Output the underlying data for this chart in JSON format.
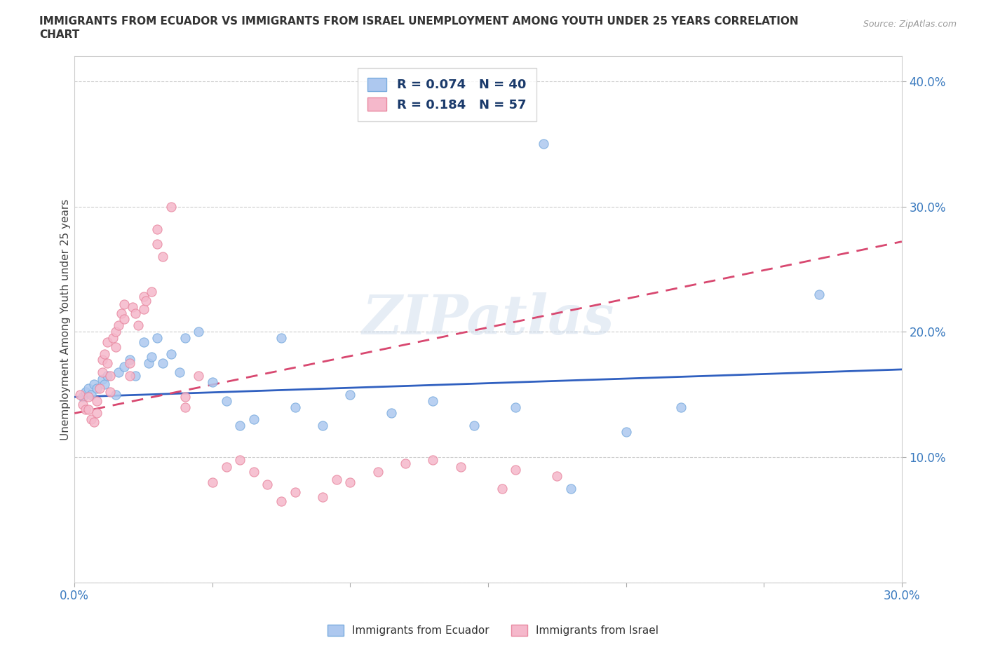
{
  "title_line1": "IMMIGRANTS FROM ECUADOR VS IMMIGRANTS FROM ISRAEL UNEMPLOYMENT AMONG YOUTH UNDER 25 YEARS CORRELATION",
  "title_line2": "CHART",
  "source_text": "Source: ZipAtlas.com",
  "ylabel": "Unemployment Among Youth under 25 years",
  "watermark": "ZIPatlas",
  "xlim": [
    0.0,
    0.3
  ],
  "ylim": [
    0.0,
    0.42
  ],
  "xticks": [
    0.0,
    0.05,
    0.1,
    0.15,
    0.2,
    0.25,
    0.3
  ],
  "yticks": [
    0.0,
    0.1,
    0.2,
    0.3,
    0.4
  ],
  "ecuador_color": "#adc8ef",
  "ecuador_edge": "#7aacde",
  "israel_color": "#f5b8cb",
  "israel_edge": "#e888a0",
  "ecuador_R": 0.074,
  "ecuador_N": 40,
  "israel_R": 0.184,
  "israel_N": 57,
  "ecuador_line_color": "#3060c0",
  "israel_line_color": "#d84870",
  "tick_label_color": "#3a7abf",
  "legend_color": "#1a3a6b",
  "ecuador_scatter_x": [
    0.003,
    0.004,
    0.005,
    0.006,
    0.007,
    0.008,
    0.01,
    0.011,
    0.012,
    0.015,
    0.016,
    0.018,
    0.02,
    0.022,
    0.025,
    0.027,
    0.028,
    0.03,
    0.032,
    0.035,
    0.038,
    0.04,
    0.045,
    0.05,
    0.055,
    0.06,
    0.065,
    0.075,
    0.08,
    0.09,
    0.1,
    0.115,
    0.13,
    0.145,
    0.16,
    0.17,
    0.18,
    0.2,
    0.22,
    0.27
  ],
  "ecuador_scatter_y": [
    0.148,
    0.152,
    0.155,
    0.15,
    0.158,
    0.155,
    0.162,
    0.158,
    0.165,
    0.15,
    0.168,
    0.172,
    0.178,
    0.165,
    0.192,
    0.175,
    0.18,
    0.195,
    0.175,
    0.182,
    0.168,
    0.195,
    0.2,
    0.16,
    0.145,
    0.125,
    0.13,
    0.195,
    0.14,
    0.125,
    0.15,
    0.135,
    0.145,
    0.125,
    0.14,
    0.35,
    0.075,
    0.12,
    0.14,
    0.23
  ],
  "israel_scatter_x": [
    0.002,
    0.003,
    0.004,
    0.005,
    0.005,
    0.006,
    0.007,
    0.008,
    0.008,
    0.009,
    0.01,
    0.01,
    0.011,
    0.012,
    0.012,
    0.013,
    0.013,
    0.014,
    0.015,
    0.015,
    0.016,
    0.017,
    0.018,
    0.018,
    0.02,
    0.02,
    0.021,
    0.022,
    0.023,
    0.025,
    0.025,
    0.026,
    0.028,
    0.03,
    0.03,
    0.032,
    0.035,
    0.04,
    0.04,
    0.045,
    0.05,
    0.055,
    0.06,
    0.065,
    0.07,
    0.075,
    0.08,
    0.09,
    0.095,
    0.1,
    0.11,
    0.12,
    0.13,
    0.14,
    0.155,
    0.16,
    0.175
  ],
  "israel_scatter_y": [
    0.15,
    0.142,
    0.138,
    0.148,
    0.138,
    0.13,
    0.128,
    0.145,
    0.135,
    0.155,
    0.178,
    0.168,
    0.182,
    0.192,
    0.175,
    0.165,
    0.152,
    0.195,
    0.2,
    0.188,
    0.205,
    0.215,
    0.222,
    0.21,
    0.175,
    0.165,
    0.22,
    0.215,
    0.205,
    0.228,
    0.218,
    0.225,
    0.232,
    0.27,
    0.282,
    0.26,
    0.3,
    0.14,
    0.148,
    0.165,
    0.08,
    0.092,
    0.098,
    0.088,
    0.078,
    0.065,
    0.072,
    0.068,
    0.082,
    0.08,
    0.088,
    0.095,
    0.098,
    0.092,
    0.075,
    0.09,
    0.085
  ],
  "background_color": "#ffffff",
  "grid_color": "#cccccc",
  "fig_width": 14.06,
  "fig_height": 9.3
}
